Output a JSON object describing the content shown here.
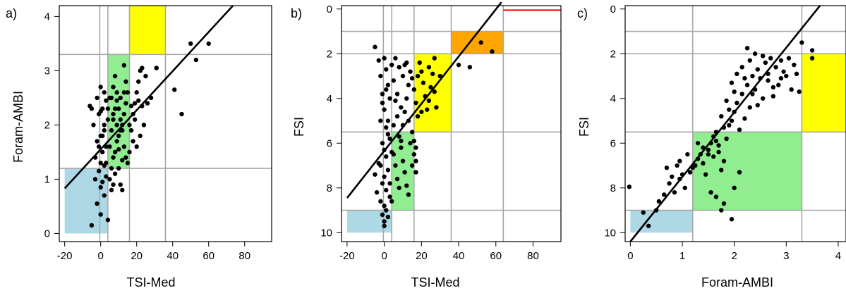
{
  "chart_data": [
    {
      "panel": "a)",
      "type": "scatter",
      "xlabel": "TSI-Med",
      "ylabel": "Foram-AMBI",
      "xlim": [
        -23,
        95
      ],
      "ylim": [
        -0.15,
        4.2
      ],
      "y_reversed": false,
      "xticks": [
        -20,
        0,
        20,
        40,
        60,
        80
      ],
      "yticks": [
        0,
        1,
        2,
        3,
        4
      ],
      "vlines": [
        -0.5,
        4,
        16,
        36
      ],
      "hlines": [
        1.2,
        3.3
      ],
      "regions": [
        {
          "x0": -20,
          "x1": 4,
          "y0": 0,
          "y1": 1.2,
          "color": "#add8e6"
        },
        {
          "x0": 4,
          "x1": 16,
          "y0": 1.2,
          "y1": 3.3,
          "color": "#90ee90"
        },
        {
          "x0": 16,
          "x1": 36,
          "y0": 3.3,
          "y1": 4.2,
          "color": "#ffff00"
        }
      ],
      "fit_line": {
        "x": [
          -20,
          73.5
        ],
        "y": [
          0.83,
          4.2
        ]
      },
      "points": [
        [
          -5,
          0.15
        ],
        [
          0,
          0.35
        ],
        [
          2,
          0.7
        ],
        [
          4,
          0.25
        ],
        [
          -2,
          0.55
        ],
        [
          0,
          0.85
        ],
        [
          1,
          0.95
        ],
        [
          3,
          1.05
        ],
        [
          -1,
          1.15
        ],
        [
          2,
          1.25
        ],
        [
          0,
          1.3
        ],
        [
          -3,
          1.4
        ],
        [
          1,
          1.5
        ],
        [
          3,
          1.6
        ],
        [
          -2,
          1.7
        ],
        [
          0,
          1.8
        ],
        [
          2,
          1.9
        ],
        [
          -4,
          2.0
        ],
        [
          4,
          2.1
        ],
        [
          -1,
          2.2
        ],
        [
          1,
          2.3
        ],
        [
          3,
          2.45
        ],
        [
          -5,
          2.3
        ],
        [
          -6,
          2.35
        ],
        [
          2,
          2.6
        ],
        [
          0,
          2.7
        ],
        [
          5,
          1.0
        ],
        [
          6,
          1.2
        ],
        [
          7,
          1.4
        ],
        [
          8,
          1.5
        ],
        [
          9,
          1.7
        ],
        [
          10,
          1.8
        ],
        [
          11,
          1.9
        ],
        [
          12,
          2.0
        ],
        [
          13,
          2.2
        ],
        [
          14,
          2.4
        ],
        [
          6,
          2.5
        ],
        [
          7,
          2.7
        ],
        [
          8,
          2.9
        ],
        [
          9,
          2.6
        ],
        [
          10,
          2.3
        ],
        [
          11,
          2.1
        ],
        [
          12,
          1.9
        ],
        [
          13,
          1.6
        ],
        [
          14,
          1.4
        ],
        [
          15,
          1.3
        ],
        [
          5,
          1.6
        ],
        [
          6,
          1.9
        ],
        [
          7,
          2.1
        ],
        [
          8,
          2.3
        ],
        [
          9,
          2.0
        ],
        [
          10,
          1.2
        ],
        [
          11,
          0.9
        ],
        [
          12,
          0.8
        ],
        [
          16,
          1.5
        ],
        [
          17,
          1.9
        ],
        [
          18,
          2.2
        ],
        [
          19,
          2.4
        ],
        [
          20,
          2.6
        ],
        [
          21,
          2.8
        ],
        [
          22,
          3.0
        ],
        [
          23,
          3.05
        ],
        [
          25,
          2.9
        ],
        [
          26,
          2.4
        ],
        [
          28,
          2.5
        ],
        [
          24,
          2.0
        ],
        [
          22,
          1.8
        ],
        [
          20,
          1.6
        ],
        [
          18,
          1.7
        ],
        [
          16,
          2.0
        ],
        [
          15,
          2.6
        ],
        [
          14,
          2.8
        ],
        [
          13,
          3.1
        ],
        [
          -3,
          1.0
        ],
        [
          -1,
          1.6
        ],
        [
          1,
          1.8
        ],
        [
          2,
          2.0
        ],
        [
          4,
          2.3
        ],
        [
          5,
          2.5
        ],
        [
          7,
          2.2
        ],
        [
          9,
          2.45
        ],
        [
          3,
          1.3
        ],
        [
          0,
          2.25
        ],
        [
          -2,
          2.5
        ],
        [
          6,
          0.8
        ],
        [
          8,
          1.1
        ],
        [
          10,
          1.55
        ],
        [
          12,
          1.35
        ],
        [
          31,
          3.05
        ],
        [
          41,
          2.65
        ],
        [
          45,
          2.2
        ],
        [
          50,
          3.5
        ],
        [
          53,
          3.2
        ],
        [
          60,
          3.5
        ],
        [
          7,
          0.9
        ],
        [
          11,
          2.5
        ],
        [
          13,
          2.6
        ],
        [
          17,
          2.35
        ],
        [
          19,
          2.1
        ],
        [
          21,
          2.45
        ],
        [
          23,
          2.35
        ]
      ]
    },
    {
      "panel": "b)",
      "type": "scatter",
      "xlabel": "TSI-Med",
      "ylabel": "FSI",
      "xlim": [
        -23,
        95
      ],
      "ylim": [
        10.4,
        -0.15
      ],
      "y_reversed": true,
      "xticks": [
        -20,
        0,
        20,
        40,
        60,
        80
      ],
      "yticks": [
        0,
        2,
        4,
        6,
        8,
        10
      ],
      "vlines": [
        -0.5,
        4,
        16,
        36,
        64
      ],
      "hlines": [
        1,
        2,
        5.5,
        9
      ],
      "regions": [
        {
          "x0": -20,
          "x1": 4,
          "y0": 9,
          "y1": 10,
          "color": "#add8e6"
        },
        {
          "x0": 4,
          "x1": 16,
          "y0": 5.5,
          "y1": 9,
          "color": "#90ee90"
        },
        {
          "x0": 16,
          "x1": 36,
          "y0": 2,
          "y1": 5.5,
          "color": "#ffff00"
        },
        {
          "x0": 36,
          "x1": 64,
          "y0": 1,
          "y1": 2,
          "color": "#ffa500"
        }
      ],
      "red_segment": {
        "x0": 64,
        "x1": 95,
        "y": 0.05,
        "color": "#ff0000"
      },
      "fit_line": {
        "x": [
          -20,
          63
        ],
        "y": [
          8.45,
          -0.3
        ]
      },
      "points": [
        [
          -5,
          1.7
        ],
        [
          -3,
          2.3
        ],
        [
          0,
          2.2
        ],
        [
          1,
          2.7
        ],
        [
          -2,
          3.0
        ],
        [
          2,
          3.4
        ],
        [
          -1,
          3.8
        ],
        [
          3,
          4.0
        ],
        [
          0,
          4.5
        ],
        [
          -2,
          5.0
        ],
        [
          1,
          5.3
        ],
        [
          2,
          5.6
        ],
        [
          -1,
          6.0
        ],
        [
          0,
          6.3
        ],
        [
          1,
          6.6
        ],
        [
          -3,
          6.9
        ],
        [
          2,
          7.2
        ],
        [
          0,
          7.5
        ],
        [
          -1,
          7.8
        ],
        [
          1,
          8.1
        ],
        [
          3,
          8.4
        ],
        [
          -2,
          8.6
        ],
        [
          0,
          8.8
        ],
        [
          1,
          9.0
        ],
        [
          -1,
          9.2
        ],
        [
          0,
          9.5
        ],
        [
          0,
          9.7
        ],
        [
          2,
          9.3
        ],
        [
          -4,
          8.2
        ],
        [
          -5,
          7.4
        ],
        [
          4,
          2.5
        ],
        [
          5,
          3.2
        ],
        [
          6,
          4.1
        ],
        [
          7,
          4.8
        ],
        [
          8,
          5.7
        ],
        [
          9,
          6.2
        ],
        [
          10,
          6.8
        ],
        [
          11,
          7.3
        ],
        [
          12,
          7.9
        ],
        [
          13,
          8.3
        ],
        [
          14,
          6.0
        ],
        [
          15,
          5.5
        ],
        [
          5,
          6.5
        ],
        [
          6,
          7.0
        ],
        [
          7,
          7.6
        ],
        [
          8,
          8.0
        ],
        [
          9,
          5.9
        ],
        [
          10,
          5.2
        ],
        [
          11,
          4.6
        ],
        [
          12,
          4.0
        ],
        [
          13,
          3.4
        ],
        [
          14,
          2.8
        ],
        [
          15,
          3.1
        ],
        [
          6,
          2.2
        ],
        [
          8,
          2.6
        ],
        [
          10,
          3.0
        ],
        [
          12,
          2.4
        ],
        [
          16,
          3.6
        ],
        [
          17,
          4.2
        ],
        [
          18,
          4.8
        ],
        [
          19,
          2.4
        ],
        [
          20,
          2.8
        ],
        [
          21,
          3.3
        ],
        [
          22,
          3.9
        ],
        [
          23,
          4.5
        ],
        [
          24,
          4.1
        ],
        [
          25,
          3.5
        ],
        [
          26,
          2.9
        ],
        [
          27,
          3.7
        ],
        [
          28,
          4.4
        ],
        [
          18,
          3.0
        ],
        [
          20,
          4.6
        ],
        [
          17,
          6.2
        ],
        [
          17,
          6.8
        ],
        [
          17,
          7.3
        ],
        [
          16,
          5.9
        ],
        [
          16,
          6.5
        ],
        [
          2,
          5.0
        ],
        [
          3,
          5.8
        ],
        [
          4,
          6.4
        ],
        [
          -1,
          4.2
        ],
        [
          1,
          3.6
        ],
        [
          3,
          7.8
        ],
        [
          4,
          8.6
        ],
        [
          -2,
          7.0
        ],
        [
          5,
          5.2
        ],
        [
          7,
          3.8
        ],
        [
          9,
          4.4
        ],
        [
          11,
          2.5
        ],
        [
          13,
          5.0
        ],
        [
          15,
          7.0
        ],
        [
          40,
          2.5
        ],
        [
          46,
          2.6
        ],
        [
          52,
          1.5
        ],
        [
          58,
          1.9
        ],
        [
          30,
          3.0
        ],
        [
          24,
          2.6
        ],
        [
          27,
          2.2
        ]
      ]
    },
    {
      "panel": "c)",
      "type": "scatter",
      "xlabel": "Foram-AMBI",
      "ylabel": "FSI",
      "xlim": [
        -0.1,
        4.15
      ],
      "ylim": [
        10.4,
        -0.15
      ],
      "y_reversed": true,
      "xticks": [
        0,
        1,
        2,
        3,
        4
      ],
      "yticks": [
        0,
        2,
        4,
        6,
        8,
        10
      ],
      "vlines": [
        1.2,
        3.3
      ],
      "hlines": [
        1,
        2,
        5.5,
        9
      ],
      "regions": [
        {
          "x0": 0,
          "x1": 1.2,
          "y0": 9,
          "y1": 10,
          "color": "#add8e6"
        },
        {
          "x0": 1.2,
          "x1": 3.3,
          "y0": 5.5,
          "y1": 9,
          "color": "#90ee90"
        },
        {
          "x0": 3.3,
          "x1": 4.15,
          "y0": 2,
          "y1": 5.5,
          "color": "#ffff00"
        }
      ],
      "fit_line": {
        "x": [
          0,
          3.65
        ],
        "y": [
          10.4,
          -0.15
        ]
      },
      "points": [
        [
          -0.02,
          7.95
        ],
        [
          0.25,
          9.1
        ],
        [
          0.35,
          9.7
        ],
        [
          0.5,
          9.0
        ],
        [
          0.55,
          8.6
        ],
        [
          0.65,
          8.3
        ],
        [
          0.75,
          7.8
        ],
        [
          0.85,
          8.2
        ],
        [
          0.95,
          7.6
        ],
        [
          1.05,
          8.0
        ],
        [
          1.15,
          7.3
        ],
        [
          0.9,
          7.0
        ],
        [
          1.0,
          7.4
        ],
        [
          0.7,
          7.1
        ],
        [
          0.8,
          7.5
        ],
        [
          1.2,
          7.1
        ],
        [
          1.25,
          7.0
        ],
        [
          1.3,
          6.7
        ],
        [
          1.35,
          6.5
        ],
        [
          1.4,
          6.9
        ],
        [
          1.45,
          7.4
        ],
        [
          1.5,
          6.3
        ],
        [
          1.55,
          6.0
        ],
        [
          1.6,
          6.6
        ],
        [
          1.65,
          5.9
        ],
        [
          1.7,
          6.4
        ],
        [
          1.75,
          7.2
        ],
        [
          1.8,
          6.8
        ],
        [
          1.85,
          5.8
        ],
        [
          1.9,
          5.2
        ],
        [
          1.95,
          5.0
        ],
        [
          2.0,
          4.6
        ],
        [
          2.05,
          4.2
        ],
        [
          2.1,
          5.4
        ],
        [
          2.15,
          3.8
        ],
        [
          2.2,
          4.9
        ],
        [
          2.25,
          3.4
        ],
        [
          2.3,
          4.4
        ],
        [
          2.35,
          3.0
        ],
        [
          2.4,
          3.6
        ],
        [
          2.45,
          2.7
        ],
        [
          2.5,
          3.1
        ],
        [
          2.55,
          4.0
        ],
        [
          2.6,
          2.4
        ],
        [
          2.65,
          3.2
        ],
        [
          2.7,
          2.2
        ],
        [
          2.75,
          3.9
        ],
        [
          2.8,
          2.6
        ],
        [
          2.85,
          3.4
        ],
        [
          2.9,
          2.3
        ],
        [
          2.95,
          2.8
        ],
        [
          3.0,
          3.0
        ],
        [
          3.05,
          2.2
        ],
        [
          3.1,
          3.6
        ],
        [
          3.15,
          2.5
        ],
        [
          3.2,
          2.9
        ],
        [
          2.25,
          1.75
        ],
        [
          2.4,
          2.0
        ],
        [
          2.55,
          2.1
        ],
        [
          2.05,
          2.9
        ],
        [
          2.15,
          2.6
        ],
        [
          2.3,
          2.3
        ],
        [
          1.95,
          3.3
        ],
        [
          2.0,
          3.7
        ],
        [
          1.85,
          4.1
        ],
        [
          1.9,
          4.5
        ],
        [
          1.75,
          4.8
        ],
        [
          1.8,
          5.3
        ],
        [
          1.65,
          5.5
        ],
        [
          1.6,
          5.7
        ],
        [
          1.55,
          8.2
        ],
        [
          1.65,
          8.4
        ],
        [
          1.8,
          8.7
        ],
        [
          1.75,
          9.0
        ],
        [
          1.95,
          9.4
        ],
        [
          2.0,
          8.0
        ],
        [
          2.1,
          7.3
        ],
        [
          1.4,
          6.2
        ],
        [
          1.3,
          6.0
        ],
        [
          2.35,
          3.8
        ],
        [
          2.45,
          4.3
        ],
        [
          2.65,
          2.9
        ],
        [
          2.75,
          3.5
        ],
        [
          2.9,
          3.1
        ],
        [
          3.25,
          3.7
        ],
        [
          3.3,
          1.5
        ],
        [
          3.5,
          2.2
        ],
        [
          3.5,
          1.85
        ],
        [
          1.1,
          6.5
        ],
        [
          0.95,
          6.8
        ],
        [
          1.5,
          6.5
        ],
        [
          1.7,
          6.1
        ],
        [
          2.2,
          3.1
        ]
      ]
    }
  ]
}
